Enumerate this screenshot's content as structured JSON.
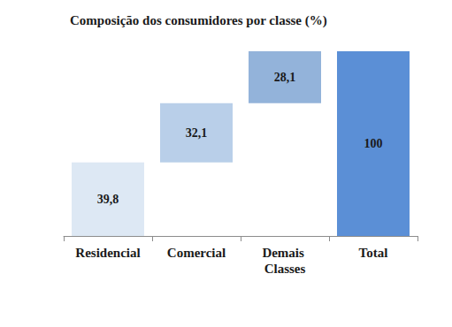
{
  "chart_data": {
    "type": "waterfall",
    "title": "Composição dos consumidores por classe (%)",
    "categories": [
      "Residencial",
      "Comercial",
      "Demais Classes",
      "Total"
    ],
    "values": [
      39.8,
      32.1,
      28.1,
      100
    ],
    "value_labels": [
      "39,8",
      "32,1",
      "28,1",
      "100"
    ],
    "colors": [
      "#dde8f4",
      "#b9cfe9",
      "#93b3da",
      "#5b8fd6"
    ],
    "ylim": [
      0,
      100
    ],
    "grid": false,
    "data_labels": true,
    "tick_labels": "x"
  }
}
